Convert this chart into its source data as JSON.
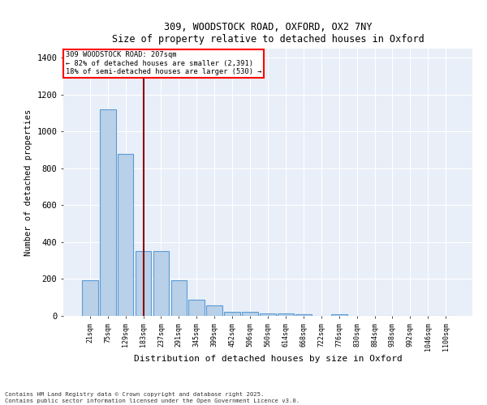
{
  "title_line1": "309, WOODSTOCK ROAD, OXFORD, OX2 7NY",
  "title_line2": "Size of property relative to detached houses in Oxford",
  "xlabel": "Distribution of detached houses by size in Oxford",
  "ylabel": "Number of detached properties",
  "categories": [
    "21sqm",
    "75sqm",
    "129sqm",
    "183sqm",
    "237sqm",
    "291sqm",
    "345sqm",
    "399sqm",
    "452sqm",
    "506sqm",
    "560sqm",
    "614sqm",
    "668sqm",
    "722sqm",
    "776sqm",
    "830sqm",
    "884sqm",
    "938sqm",
    "992sqm",
    "1046sqm",
    "1100sqm"
  ],
  "values": [
    195,
    1120,
    880,
    350,
    350,
    195,
    90,
    55,
    20,
    20,
    15,
    15,
    8,
    0,
    8,
    0,
    0,
    0,
    0,
    0,
    0
  ],
  "bar_color": "#b8d0e8",
  "bar_edge_color": "#5b9bd5",
  "red_line_index": 3.5,
  "annotation_line1": "309 WOODSTOCK ROAD: 207sqm",
  "annotation_line2": "← 82% of detached houses are smaller (2,391)",
  "annotation_line3": "18% of semi-detached houses are larger (530) →",
  "ylim": [
    0,
    1450
  ],
  "yticks": [
    0,
    200,
    400,
    600,
    800,
    1000,
    1200,
    1400
  ],
  "bg_color": "#e8eff8",
  "grid_color": "#ffffff",
  "footer_line1": "Contains HM Land Registry data © Crown copyright and database right 2025.",
  "footer_line2": "Contains public sector information licensed under the Open Government Licence v3.0."
}
